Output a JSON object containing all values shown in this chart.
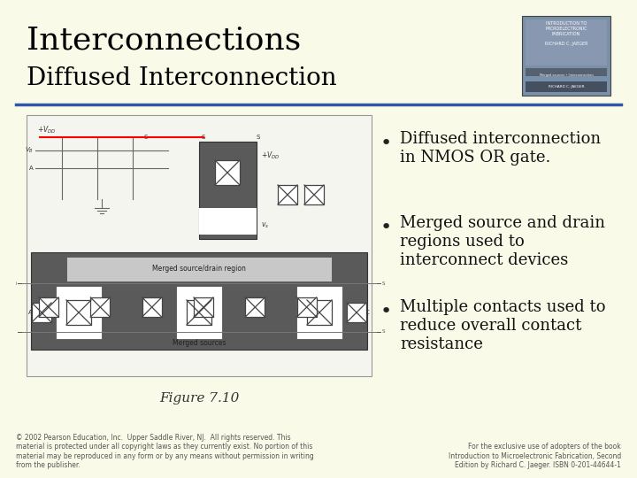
{
  "title": "Interconnections",
  "subtitle": "Diffused Interconnection",
  "bg_color": "#FAFAE8",
  "title_color": "#000000",
  "subtitle_color": "#000000",
  "title_fontsize": 26,
  "subtitle_fontsize": 20,
  "divider_color": "#3355AA",
  "bullet_points": [
    "Diffused interconnection\nin NMOS OR gate.",
    "Merged source and drain\nregions used to\ninterconnect devices",
    "Multiple contacts used to\nreduce overall contact\nresistance"
  ],
  "bullet_fontsize": 13,
  "figure_caption": "Figure 7.10",
  "figure_caption_fontsize": 11,
  "footer_left": "© 2002 Pearson Education, Inc.  Upper Saddle River, NJ.  All rights reserved. This\nmaterial is protected under all copyright laws as they currently exist. No portion of this\nmaterial may be reproduced in any form or by any means without permission in writing\nfrom the publisher.",
  "footer_right": "For the exclusive use of adopters of the book\nIntroduction to Microelectronic Fabrication, Second\nEdition by Richard C. Jaeger. ISBN 0-201-44644-1",
  "footer_fontsize": 5.5,
  "dark_gray": "#5A5A5A",
  "mid_gray": "#808080",
  "light_gray": "#C8C8C8",
  "white": "#FFFFFF",
  "diagram_bg": "#F5F5F0"
}
